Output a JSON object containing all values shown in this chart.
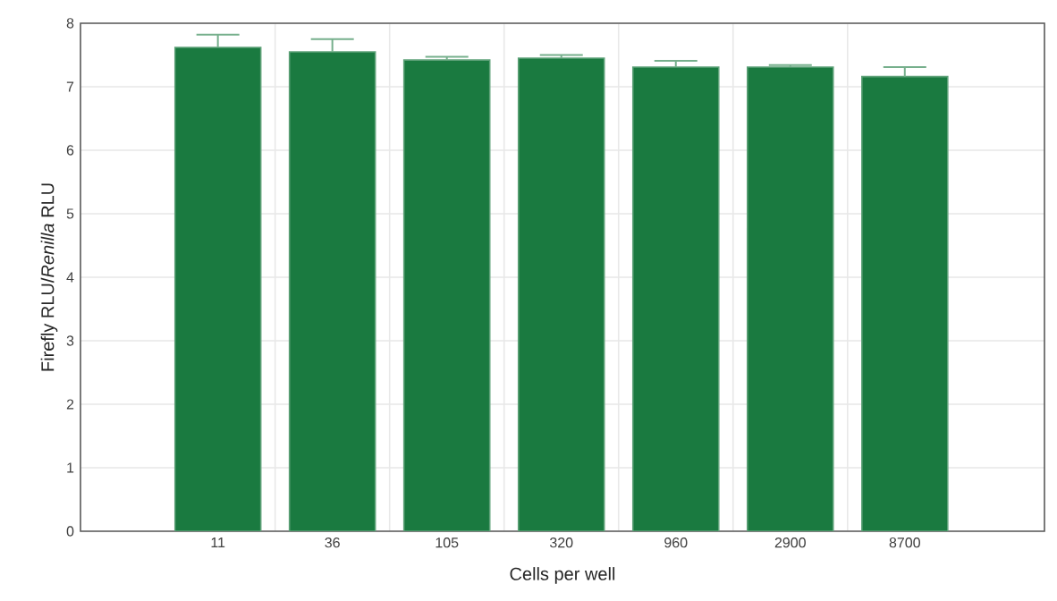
{
  "chart_data": {
    "type": "bar",
    "xlabel": "Cells per well",
    "ylabel": "Firefly RLU/*Renilla* RLU",
    "categories": [
      "11",
      "36",
      "105",
      "320",
      "960",
      "2900",
      "8700"
    ],
    "values": [
      7.62,
      7.55,
      7.42,
      7.45,
      7.31,
      7.31,
      7.16
    ],
    "errors": [
      0.2,
      0.2,
      0.05,
      0.05,
      0.1,
      0.03,
      0.15
    ],
    "color": "#1a7a40",
    "ylim": [
      0,
      8
    ],
    "yticks": [
      0,
      1,
      2,
      3,
      4,
      5,
      6,
      7,
      8
    ],
    "grid": true
  }
}
